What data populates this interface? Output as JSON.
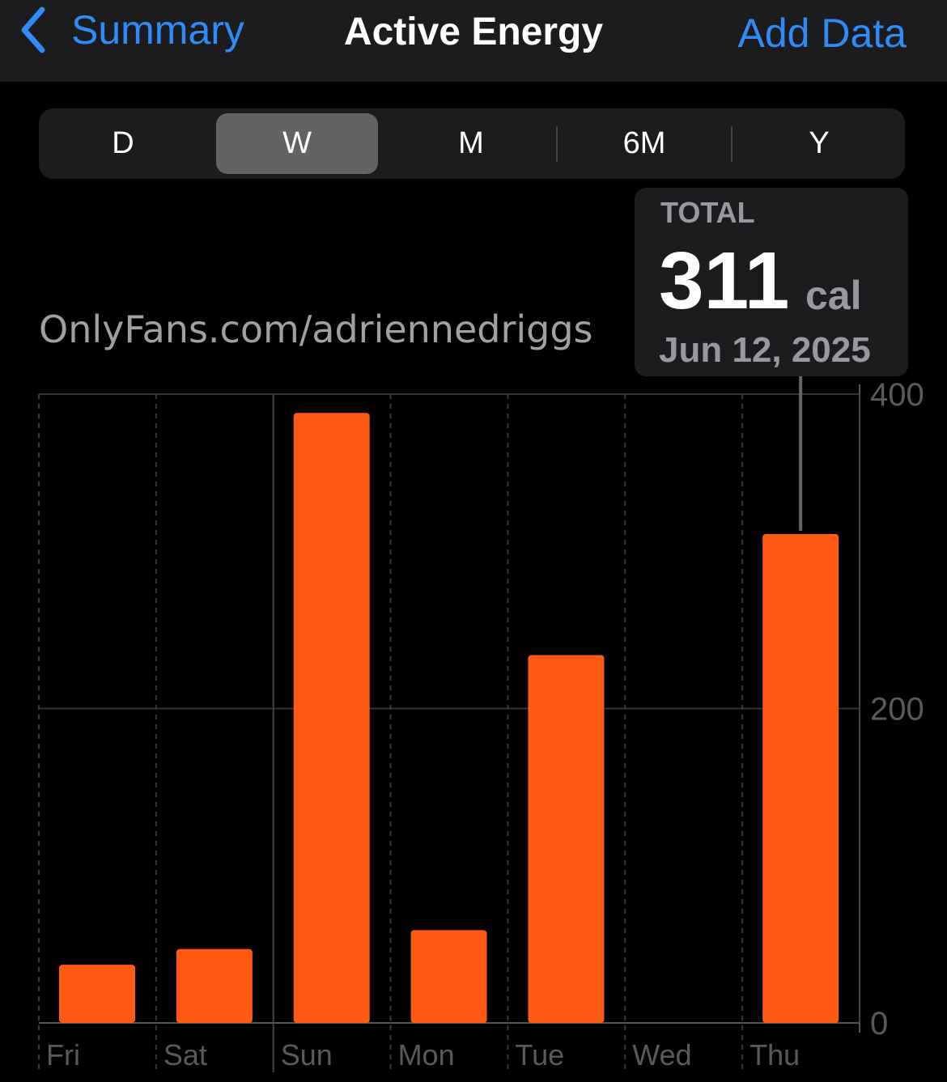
{
  "header": {
    "back_label": "Summary",
    "title": "Active Energy",
    "add_label": "Add Data"
  },
  "segments": {
    "items": [
      "D",
      "W",
      "M",
      "6M",
      "Y"
    ],
    "selected": "W"
  },
  "tooltip": {
    "label": "TOTAL",
    "value": "311",
    "unit": "cal",
    "date": "Jun 12, 2025"
  },
  "colors": {
    "accent": "#2f8cf6",
    "bar": "#ff5a14"
  },
  "watermark": "OnlyFans.com/adriennedriggs",
  "chart_data": {
    "type": "bar",
    "categories": [
      "Fri",
      "Sat",
      "Sun",
      "Mon",
      "Tue",
      "Wed",
      "Thu"
    ],
    "values": [
      37,
      47,
      388,
      59,
      234,
      0,
      311
    ],
    "ylim": [
      0,
      400
    ],
    "yticks": [
      "0",
      "200",
      "400"
    ],
    "selected_category": "Thu",
    "grid": true
  }
}
